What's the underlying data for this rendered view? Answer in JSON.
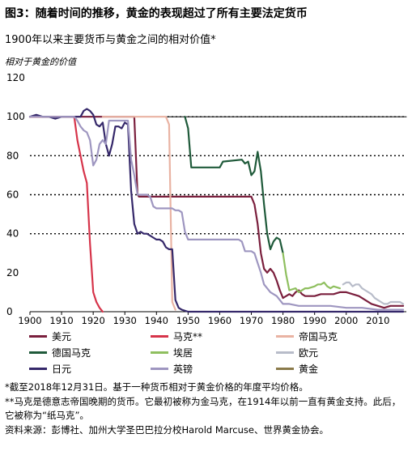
{
  "figure": {
    "title": "图3：随着时间的推移，黄金的表现超过了所有主要法定货币",
    "subtitle": "1900年以来主要货币与黄金之间的相对价值*",
    "y_axis_label": "相对于黄金的价值"
  },
  "notes": [
    "*截至2018年12月31日。基于一种货币相对于黄金价格的年度平均价格。",
    "**马克是德意志帝国晚期的货币。它最初被称为金马克，在1914年以前一直有黄金支持。此后，它被称为“纸马克”。",
    "资料来源：彭博社、加州大学圣巴巴拉分校Harold Marcuse、世界黄金协会。"
  ],
  "chart_data": {
    "type": "line",
    "title": "1900年以来主要货币与黄金之间的相对价值*",
    "ylabel": "相对于黄金的价值",
    "xlabel": "",
    "xlim": [
      1900,
      2019
    ],
    "ylim": [
      0,
      120
    ],
    "x_ticks": [
      1900,
      1910,
      1920,
      1930,
      1940,
      1950,
      1960,
      1970,
      1980,
      1990,
      2000,
      2010
    ],
    "y_ticks": [
      0,
      20,
      40,
      60,
      80,
      100,
      120
    ],
    "gridlines": [
      40,
      60,
      80,
      100
    ],
    "legend_position": "bottom",
    "series": [
      {
        "name": "美元",
        "color": "#7a1f3d",
        "points": [
          [
            1900,
            100
          ],
          [
            1933,
            100
          ],
          [
            1934,
            60
          ],
          [
            1934.5,
            59
          ],
          [
            1970,
            59
          ],
          [
            1971,
            55
          ],
          [
            1972,
            45
          ],
          [
            1973,
            30
          ],
          [
            1974,
            22
          ],
          [
            1975,
            20
          ],
          [
            1976,
            22
          ],
          [
            1977,
            20
          ],
          [
            1978,
            16
          ],
          [
            1979,
            11
          ],
          [
            1980,
            7
          ],
          [
            1981,
            8
          ],
          [
            1982,
            9
          ],
          [
            1983,
            8
          ],
          [
            1984,
            10
          ],
          [
            1985,
            11
          ],
          [
            1986,
            9
          ],
          [
            1987,
            8
          ],
          [
            1988,
            8
          ],
          [
            1990,
            8
          ],
          [
            1992,
            9
          ],
          [
            1994,
            9
          ],
          [
            1996,
            9
          ],
          [
            1998,
            10
          ],
          [
            2000,
            10
          ],
          [
            2002,
            9
          ],
          [
            2004,
            8
          ],
          [
            2006,
            6
          ],
          [
            2008,
            4
          ],
          [
            2010,
            3
          ],
          [
            2012,
            2
          ],
          [
            2014,
            3
          ],
          [
            2016,
            3
          ],
          [
            2018,
            3
          ]
        ]
      },
      {
        "name": "马克**",
        "color": "#d6344a",
        "points": [
          [
            1900,
            100
          ],
          [
            1914,
            100
          ],
          [
            1915,
            88
          ],
          [
            1916,
            80
          ],
          [
            1917,
            72
          ],
          [
            1918,
            66
          ],
          [
            1919,
            35
          ],
          [
            1920,
            10
          ],
          [
            1921,
            5
          ],
          [
            1922,
            2
          ],
          [
            1923,
            0
          ]
        ]
      },
      {
        "name": "帝国马克",
        "color": "#e9b3a3",
        "points": [
          [
            1923,
            100
          ],
          [
            1943,
            100
          ],
          [
            1944,
            96
          ],
          [
            1945,
            5
          ],
          [
            1946,
            1
          ]
        ]
      },
      {
        "name": "德国马克",
        "color": "#1f5a3a",
        "points": [
          [
            1949,
            100
          ],
          [
            1950,
            94
          ],
          [
            1951,
            74
          ],
          [
            1960,
            74
          ],
          [
            1961,
            77
          ],
          [
            1967,
            78
          ],
          [
            1968,
            76
          ],
          [
            1969,
            77
          ],
          [
            1970,
            70
          ],
          [
            1971,
            72
          ],
          [
            1972,
            82
          ],
          [
            1973,
            72
          ],
          [
            1974,
            55
          ],
          [
            1975,
            40
          ],
          [
            1976,
            32
          ],
          [
            1977,
            36
          ],
          [
            1978,
            38
          ],
          [
            1979,
            37
          ],
          [
            1980,
            30
          ]
        ]
      },
      {
        "name": "埃居",
        "color": "#8fbf5f",
        "points": [
          [
            1980,
            30
          ],
          [
            1981,
            19
          ],
          [
            1982,
            11
          ],
          [
            1984,
            12
          ],
          [
            1985,
            10
          ],
          [
            1986,
            11
          ],
          [
            1987,
            12
          ],
          [
            1988,
            12
          ],
          [
            1990,
            13
          ],
          [
            1991,
            14
          ],
          [
            1992,
            14
          ],
          [
            1993,
            15
          ],
          [
            1994,
            13
          ],
          [
            1995,
            12
          ],
          [
            1996,
            13
          ],
          [
            1998,
            12
          ]
        ]
      },
      {
        "name": "欧元",
        "color": "#b8bcc9",
        "points": [
          [
            1999,
            14
          ],
          [
            2000,
            15
          ],
          [
            2001,
            15
          ],
          [
            2002,
            13
          ],
          [
            2003,
            14
          ],
          [
            2004,
            14
          ],
          [
            2005,
            12
          ],
          [
            2006,
            11
          ],
          [
            2007,
            10
          ],
          [
            2008,
            9
          ],
          [
            2009,
            7
          ],
          [
            2010,
            6
          ],
          [
            2011,
            5
          ],
          [
            2012,
            4
          ],
          [
            2013,
            4
          ],
          [
            2014,
            5
          ],
          [
            2015,
            5
          ],
          [
            2016,
            5
          ],
          [
            2017,
            5
          ],
          [
            2018,
            4
          ]
        ]
      },
      {
        "name": "日元",
        "color": "#35286a",
        "points": [
          [
            1900,
            100
          ],
          [
            1902,
            101
          ],
          [
            1904,
            100
          ],
          [
            1906,
            100
          ],
          [
            1908,
            99
          ],
          [
            1910,
            100
          ],
          [
            1912,
            100
          ],
          [
            1914,
            100
          ],
          [
            1916,
            100
          ],
          [
            1917,
            103
          ],
          [
            1918,
            104
          ],
          [
            1919,
            103
          ],
          [
            1920,
            101
          ],
          [
            1921,
            96
          ],
          [
            1922,
            95
          ],
          [
            1923,
            97
          ],
          [
            1924,
            86
          ],
          [
            1925,
            80
          ],
          [
            1926,
            86
          ],
          [
            1927,
            95
          ],
          [
            1928,
            95
          ],
          [
            1929,
            94
          ],
          [
            1930,
            97
          ],
          [
            1931,
            96
          ],
          [
            1932,
            62
          ],
          [
            1933,
            45
          ],
          [
            1934,
            40
          ],
          [
            1935,
            41
          ],
          [
            1936,
            40
          ],
          [
            1937,
            40
          ],
          [
            1938,
            39
          ],
          [
            1939,
            38
          ],
          [
            1940,
            37
          ],
          [
            1941,
            37
          ],
          [
            1942,
            36
          ],
          [
            1943,
            33
          ],
          [
            1944,
            32
          ],
          [
            1945,
            32
          ],
          [
            1946,
            6
          ],
          [
            1947,
            2
          ],
          [
            1948,
            1
          ],
          [
            1950,
            0
          ],
          [
            2018,
            0
          ]
        ]
      },
      {
        "name": "英镑",
        "color": "#9e96c0",
        "points": [
          [
            1900,
            100
          ],
          [
            1914,
            100
          ],
          [
            1915,
            98
          ],
          [
            1916,
            95
          ],
          [
            1917,
            93
          ],
          [
            1918,
            92
          ],
          [
            1919,
            88
          ],
          [
            1920,
            75
          ],
          [
            1921,
            78
          ],
          [
            1922,
            86
          ],
          [
            1923,
            88
          ],
          [
            1924,
            86
          ],
          [
            1925,
            98
          ],
          [
            1931,
            98
          ],
          [
            1932,
            78
          ],
          [
            1933,
            70
          ],
          [
            1934,
            60
          ],
          [
            1935,
            60
          ],
          [
            1937,
            60
          ],
          [
            1938,
            59
          ],
          [
            1939,
            54
          ],
          [
            1940,
            53
          ],
          [
            1945,
            53
          ],
          [
            1946,
            52
          ],
          [
            1947,
            52
          ],
          [
            1948,
            51
          ],
          [
            1949,
            41
          ],
          [
            1950,
            37
          ],
          [
            1966,
            37
          ],
          [
            1967,
            36
          ],
          [
            1968,
            31
          ],
          [
            1970,
            31
          ],
          [
            1971,
            30
          ],
          [
            1972,
            25
          ],
          [
            1973,
            20
          ],
          [
            1974,
            14
          ],
          [
            1975,
            12
          ],
          [
            1976,
            10
          ],
          [
            1977,
            9
          ],
          [
            1978,
            8
          ],
          [
            1979,
            6
          ],
          [
            1980,
            4
          ],
          [
            1982,
            4
          ],
          [
            1985,
            3
          ],
          [
            1990,
            3
          ],
          [
            1995,
            3
          ],
          [
            2000,
            2
          ],
          [
            2005,
            2
          ],
          [
            2010,
            1
          ],
          [
            2018,
            1
          ]
        ]
      },
      {
        "name": "黄金",
        "color": "#8a7a4a",
        "points": [
          [
            1900,
            100
          ],
          [
            2019,
            100
          ]
        ]
      }
    ]
  }
}
